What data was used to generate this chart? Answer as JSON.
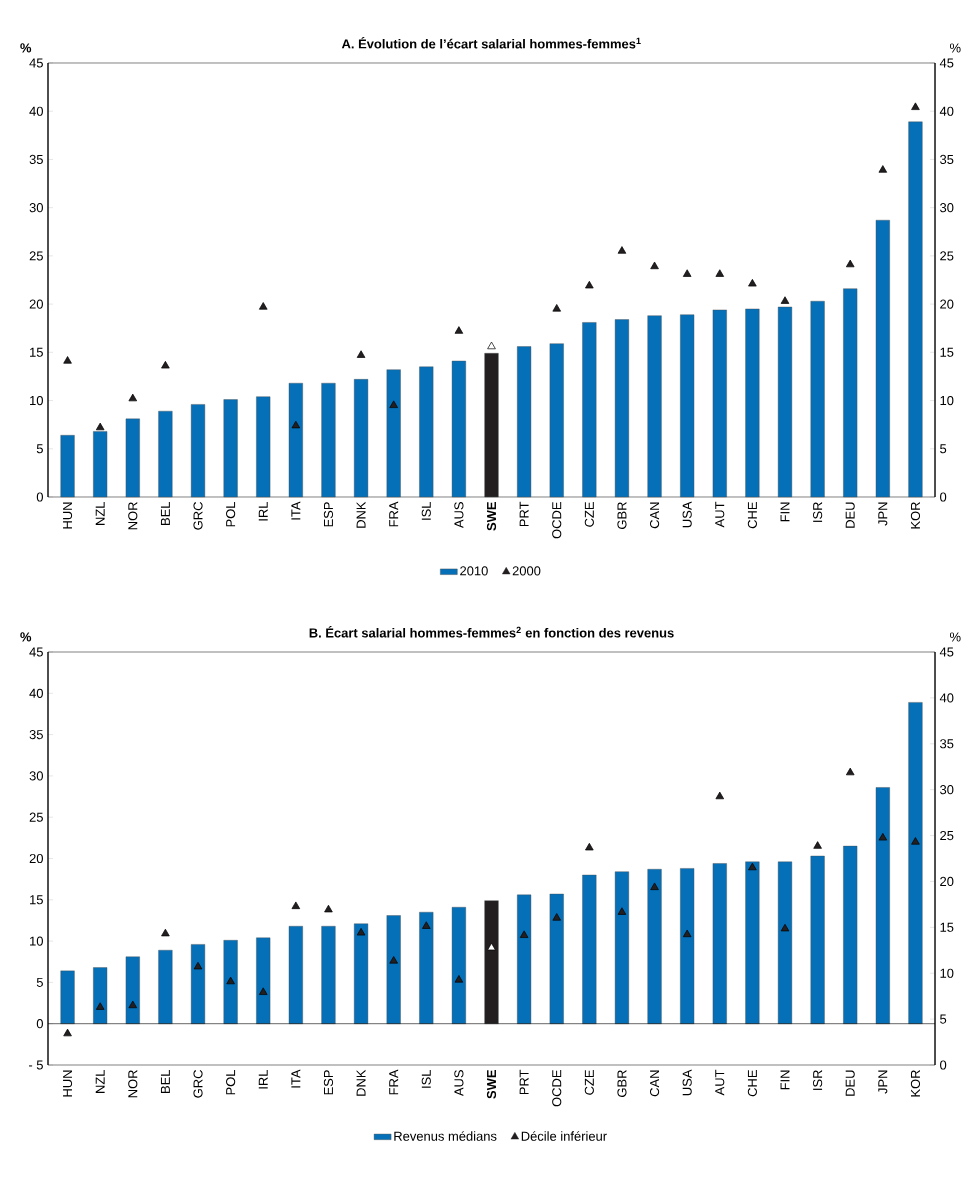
{
  "chart_data": [
    {
      "type": "bar",
      "title": "A. Évolution de l’écart salarial hommes-femmes$^{1}$",
      "ylabel": "%",
      "y2label": "%",
      "categories": [
        "HUN",
        "NZL",
        "NOR",
        "BEL",
        "GRC",
        "POL",
        "IRL",
        "ITA",
        "ESP",
        "DNK",
        "FRA",
        "ISL",
        "AUS",
        "**SWE**",
        "PRT",
        "OCDE",
        "CZE",
        "GBR",
        "CAN",
        "USA",
        "AUT",
        "CHE",
        "FIN",
        "ISR",
        "DEU",
        "JPN",
        "KOR"
      ],
      "series": [
        {
          "name": "2010",
          "type": "bar",
          "color": "#0570b8",
          "colors": [
            "#0570b8",
            "#0570b8",
            "#0570b8",
            "#0570b8",
            "#0570b8",
            "#0570b8",
            "#0570b8",
            "#0570b8",
            "#0570b8",
            "#0570b8",
            "#0570b8",
            "#0570b8",
            "#0570b8",
            "#231f20",
            "#0570b8",
            "#0570b8",
            "#0570b8",
            "#0570b8",
            "#0570b8",
            "#0570b8",
            "#0570b8",
            "#0570b8",
            "#0570b8",
            "#0570b8",
            "#0570b8",
            "#0570b8",
            "#0570b8"
          ],
          "values": [
            6.4,
            6.8,
            8.1,
            8.9,
            9.6,
            10.1,
            10.4,
            11.8,
            11.8,
            12.2,
            13.2,
            13.5,
            14.1,
            14.9,
            15.6,
            15.9,
            18.1,
            18.4,
            18.8,
            18.9,
            19.4,
            19.5,
            19.7,
            20.3,
            21.6,
            28.7,
            38.9
          ]
        },
        {
          "name": "2000",
          "type": "scatter",
          "marker": "triangle",
          "color": "#231f20",
          "colors": [
            "#231f20",
            "#231f20",
            "#231f20",
            "#231f20",
            "#231f20",
            "#231f20",
            "#231f20",
            "#231f20",
            "#231f20",
            "#231f20",
            "#231f20",
            "#231f20",
            "#231f20",
            "#ffffff",
            "#231f20",
            "#231f20",
            "#231f20",
            "#231f20",
            "#231f20",
            "#231f20",
            "#231f20",
            "#231f20",
            "#231f20",
            "#231f20",
            "#231f20",
            "#231f20",
            "#231f20"
          ],
          "values": [
            14.1,
            7.2,
            10.2,
            13.6,
            null,
            null,
            19.7,
            7.4,
            null,
            14.7,
            9.5,
            null,
            17.2,
            15.6,
            null,
            19.5,
            21.9,
            25.5,
            23.9,
            23.1,
            23.1,
            22.1,
            20.3,
            null,
            24.1,
            33.9,
            40.4
          ]
        }
      ],
      "ylim": [
        0,
        45
      ],
      "yticks": [
        0,
        5,
        10,
        15,
        20,
        25,
        30,
        35,
        40,
        45
      ],
      "y2lim": [
        0,
        45
      ],
      "y2ticks": [
        0,
        5,
        10,
        15,
        20,
        25,
        30,
        35,
        40,
        45
      ],
      "legend": "bottom"
    },
    {
      "type": "bar",
      "title": "B. Écart salarial hommes-femmes$^{2}$ en fonction des revenus",
      "ylabel": "%",
      "y2label": "%",
      "categories": [
        "HUN",
        "NZL",
        "NOR",
        "BEL",
        "GRC",
        "POL",
        "IRL",
        "ITA",
        "ESP",
        "DNK",
        "FRA",
        "ISL",
        "AUS",
        "**SWE**",
        "PRT",
        "OCDE",
        "CZE",
        "GBR",
        "CAN",
        "USA",
        "AUT",
        "CHE",
        "FIN",
        "ISR",
        "DEU",
        "JPN",
        "KOR"
      ],
      "series": [
        {
          "name": "Revenus médians",
          "type": "bar",
          "color": "#0570b8",
          "colors": [
            "#0570b8",
            "#0570b8",
            "#0570b8",
            "#0570b8",
            "#0570b8",
            "#0570b8",
            "#0570b8",
            "#0570b8",
            "#0570b8",
            "#0570b8",
            "#0570b8",
            "#0570b8",
            "#0570b8",
            "#231f20",
            "#0570b8",
            "#0570b8",
            "#0570b8",
            "#0570b8",
            "#0570b8",
            "#0570b8",
            "#0570b8",
            "#0570b8",
            "#0570b8",
            "#0570b8",
            "#0570b8",
            "#0570b8",
            "#0570b8"
          ],
          "values": [
            6.4,
            6.8,
            8.1,
            8.9,
            9.6,
            10.1,
            10.4,
            11.8,
            11.8,
            12.1,
            13.1,
            13.5,
            14.1,
            14.9,
            15.6,
            15.7,
            18.0,
            18.4,
            18.7,
            18.8,
            19.4,
            19.6,
            19.6,
            20.3,
            21.5,
            28.6,
            38.9
          ]
        },
        {
          "name": "Décile inférieur",
          "type": "scatter",
          "marker": "triangle",
          "color": "#231f20",
          "colors": [
            "#231f20",
            "#231f20",
            "#231f20",
            "#231f20",
            "#231f20",
            "#231f20",
            "#231f20",
            "#231f20",
            "#231f20",
            "#231f20",
            "#231f20",
            "#231f20",
            "#231f20",
            "#ffffff",
            "#231f20",
            "#231f20",
            "#231f20",
            "#231f20",
            "#231f20",
            "#231f20",
            "#231f20",
            "#231f20",
            "#231f20",
            "#231f20",
            "#231f20",
            "#231f20",
            "#231f20"
          ],
          "values": [
            -1.2,
            2.0,
            2.2,
            10.9,
            6.9,
            5.1,
            3.8,
            14.2,
            13.8,
            11.0,
            7.6,
            11.8,
            5.3,
            9.2,
            10.7,
            12.8,
            21.3,
            13.5,
            16.5,
            10.8,
            27.5,
            18.9,
            11.5,
            21.5,
            30.4,
            22.5,
            22.0
          ]
        }
      ],
      "ylim": [
        -5,
        45
      ],
      "yticks": [
        {
          "value": -5,
          "label": "- 5"
        },
        0,
        5,
        10,
        15,
        20,
        25,
        30,
        35,
        40,
        45
      ],
      "y2lim": [
        0,
        45
      ],
      "y2ticks": [
        0,
        5,
        10,
        15,
        20,
        25,
        30,
        35,
        40,
        45
      ],
      "ref_lines": [
        {
          "axis": "y",
          "value": 0
        }
      ],
      "legend": "bottom"
    }
  ]
}
